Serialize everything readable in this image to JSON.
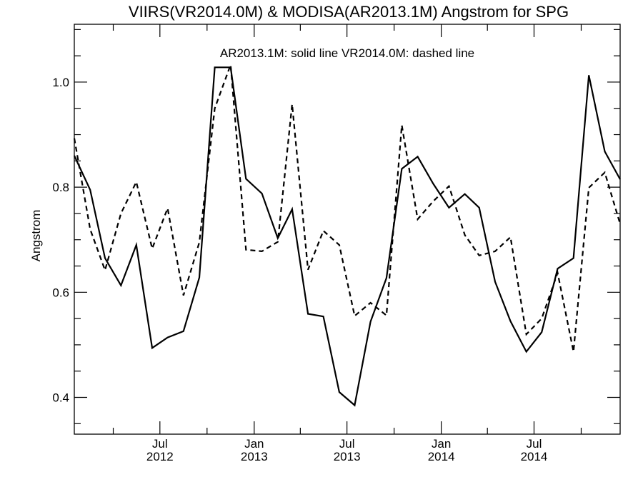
{
  "chart_data": {
    "type": "line",
    "title": "VIIRS(VR2014.0M) & MODISA(AR2013.1M)  Angstrom for SPG",
    "annotation": "AR2013.1M: solid line   VR2014.0M: dashed line",
    "xlabel": "",
    "ylabel": "Angstrom",
    "xlim": [
      "2012-01-16",
      "2014-12-16"
    ],
    "ylim": [
      0.33,
      1.11
    ],
    "yticks": [
      0.4,
      0.6,
      0.8,
      1.0
    ],
    "ytick_labels": [
      "0.4",
      "0.6",
      "0.8",
      "1.0"
    ],
    "y_minor_step": 0.05,
    "xticks": [
      {
        "date": "2012-07-01",
        "line1": "Jul",
        "line2": "2012"
      },
      {
        "date": "2013-01-01",
        "line1": "Jan",
        "line2": "2013"
      },
      {
        "date": "2013-07-01",
        "line1": "Jul",
        "line2": "2013"
      },
      {
        "date": "2014-01-01",
        "line1": "Jan",
        "line2": "2014"
      },
      {
        "date": "2014-07-01",
        "line1": "Jul",
        "line2": "2014"
      }
    ],
    "x_minor_ticks": [
      "2012-04-01",
      "2012-10-01",
      "2013-04-01",
      "2013-10-01",
      "2014-04-01",
      "2014-10-01"
    ],
    "x": [
      "2012-01",
      "2012-02",
      "2012-03",
      "2012-04",
      "2012-05",
      "2012-06",
      "2012-07",
      "2012-08",
      "2012-09",
      "2012-10",
      "2012-11",
      "2012-12",
      "2013-01",
      "2013-02",
      "2013-03",
      "2013-04",
      "2013-05",
      "2013-06",
      "2013-07",
      "2013-08",
      "2013-09",
      "2013-10",
      "2013-11",
      "2013-12",
      "2014-01",
      "2014-02",
      "2014-03",
      "2014-04",
      "2014-05",
      "2014-06",
      "2014-07",
      "2014-08",
      "2014-09",
      "2014-10",
      "2014-11",
      "2014-12"
    ],
    "series": [
      {
        "style": "solid",
        "values": [
          0.86,
          0.795,
          0.665,
          0.613,
          0.69,
          0.494,
          0.514,
          0.526,
          0.628,
          1.028,
          1.028,
          0.816,
          0.788,
          0.703,
          0.758,
          0.559,
          0.554,
          0.41,
          0.385,
          0.544,
          0.627,
          0.835,
          0.858,
          0.807,
          0.761,
          0.787,
          0.761,
          0.62,
          0.545,
          0.487,
          0.524,
          0.645,
          0.665,
          1.013,
          0.868,
          0.815
        ]
      },
      {
        "style": "dashed",
        "values": [
          0.893,
          0.72,
          0.642,
          0.75,
          0.81,
          0.683,
          0.76,
          0.594,
          0.695,
          0.95,
          1.033,
          0.681,
          0.678,
          0.696,
          0.958,
          0.643,
          0.717,
          0.69,
          0.555,
          0.58,
          0.556,
          0.918,
          0.739,
          0.773,
          0.802,
          0.709,
          0.67,
          0.678,
          0.705,
          0.52,
          0.55,
          0.637,
          0.487,
          0.799,
          0.828,
          0.73
        ]
      }
    ],
    "colors": {
      "line": "#000000",
      "axes": "#000000",
      "background": "#ffffff"
    },
    "grid": false,
    "legend": "none"
  }
}
